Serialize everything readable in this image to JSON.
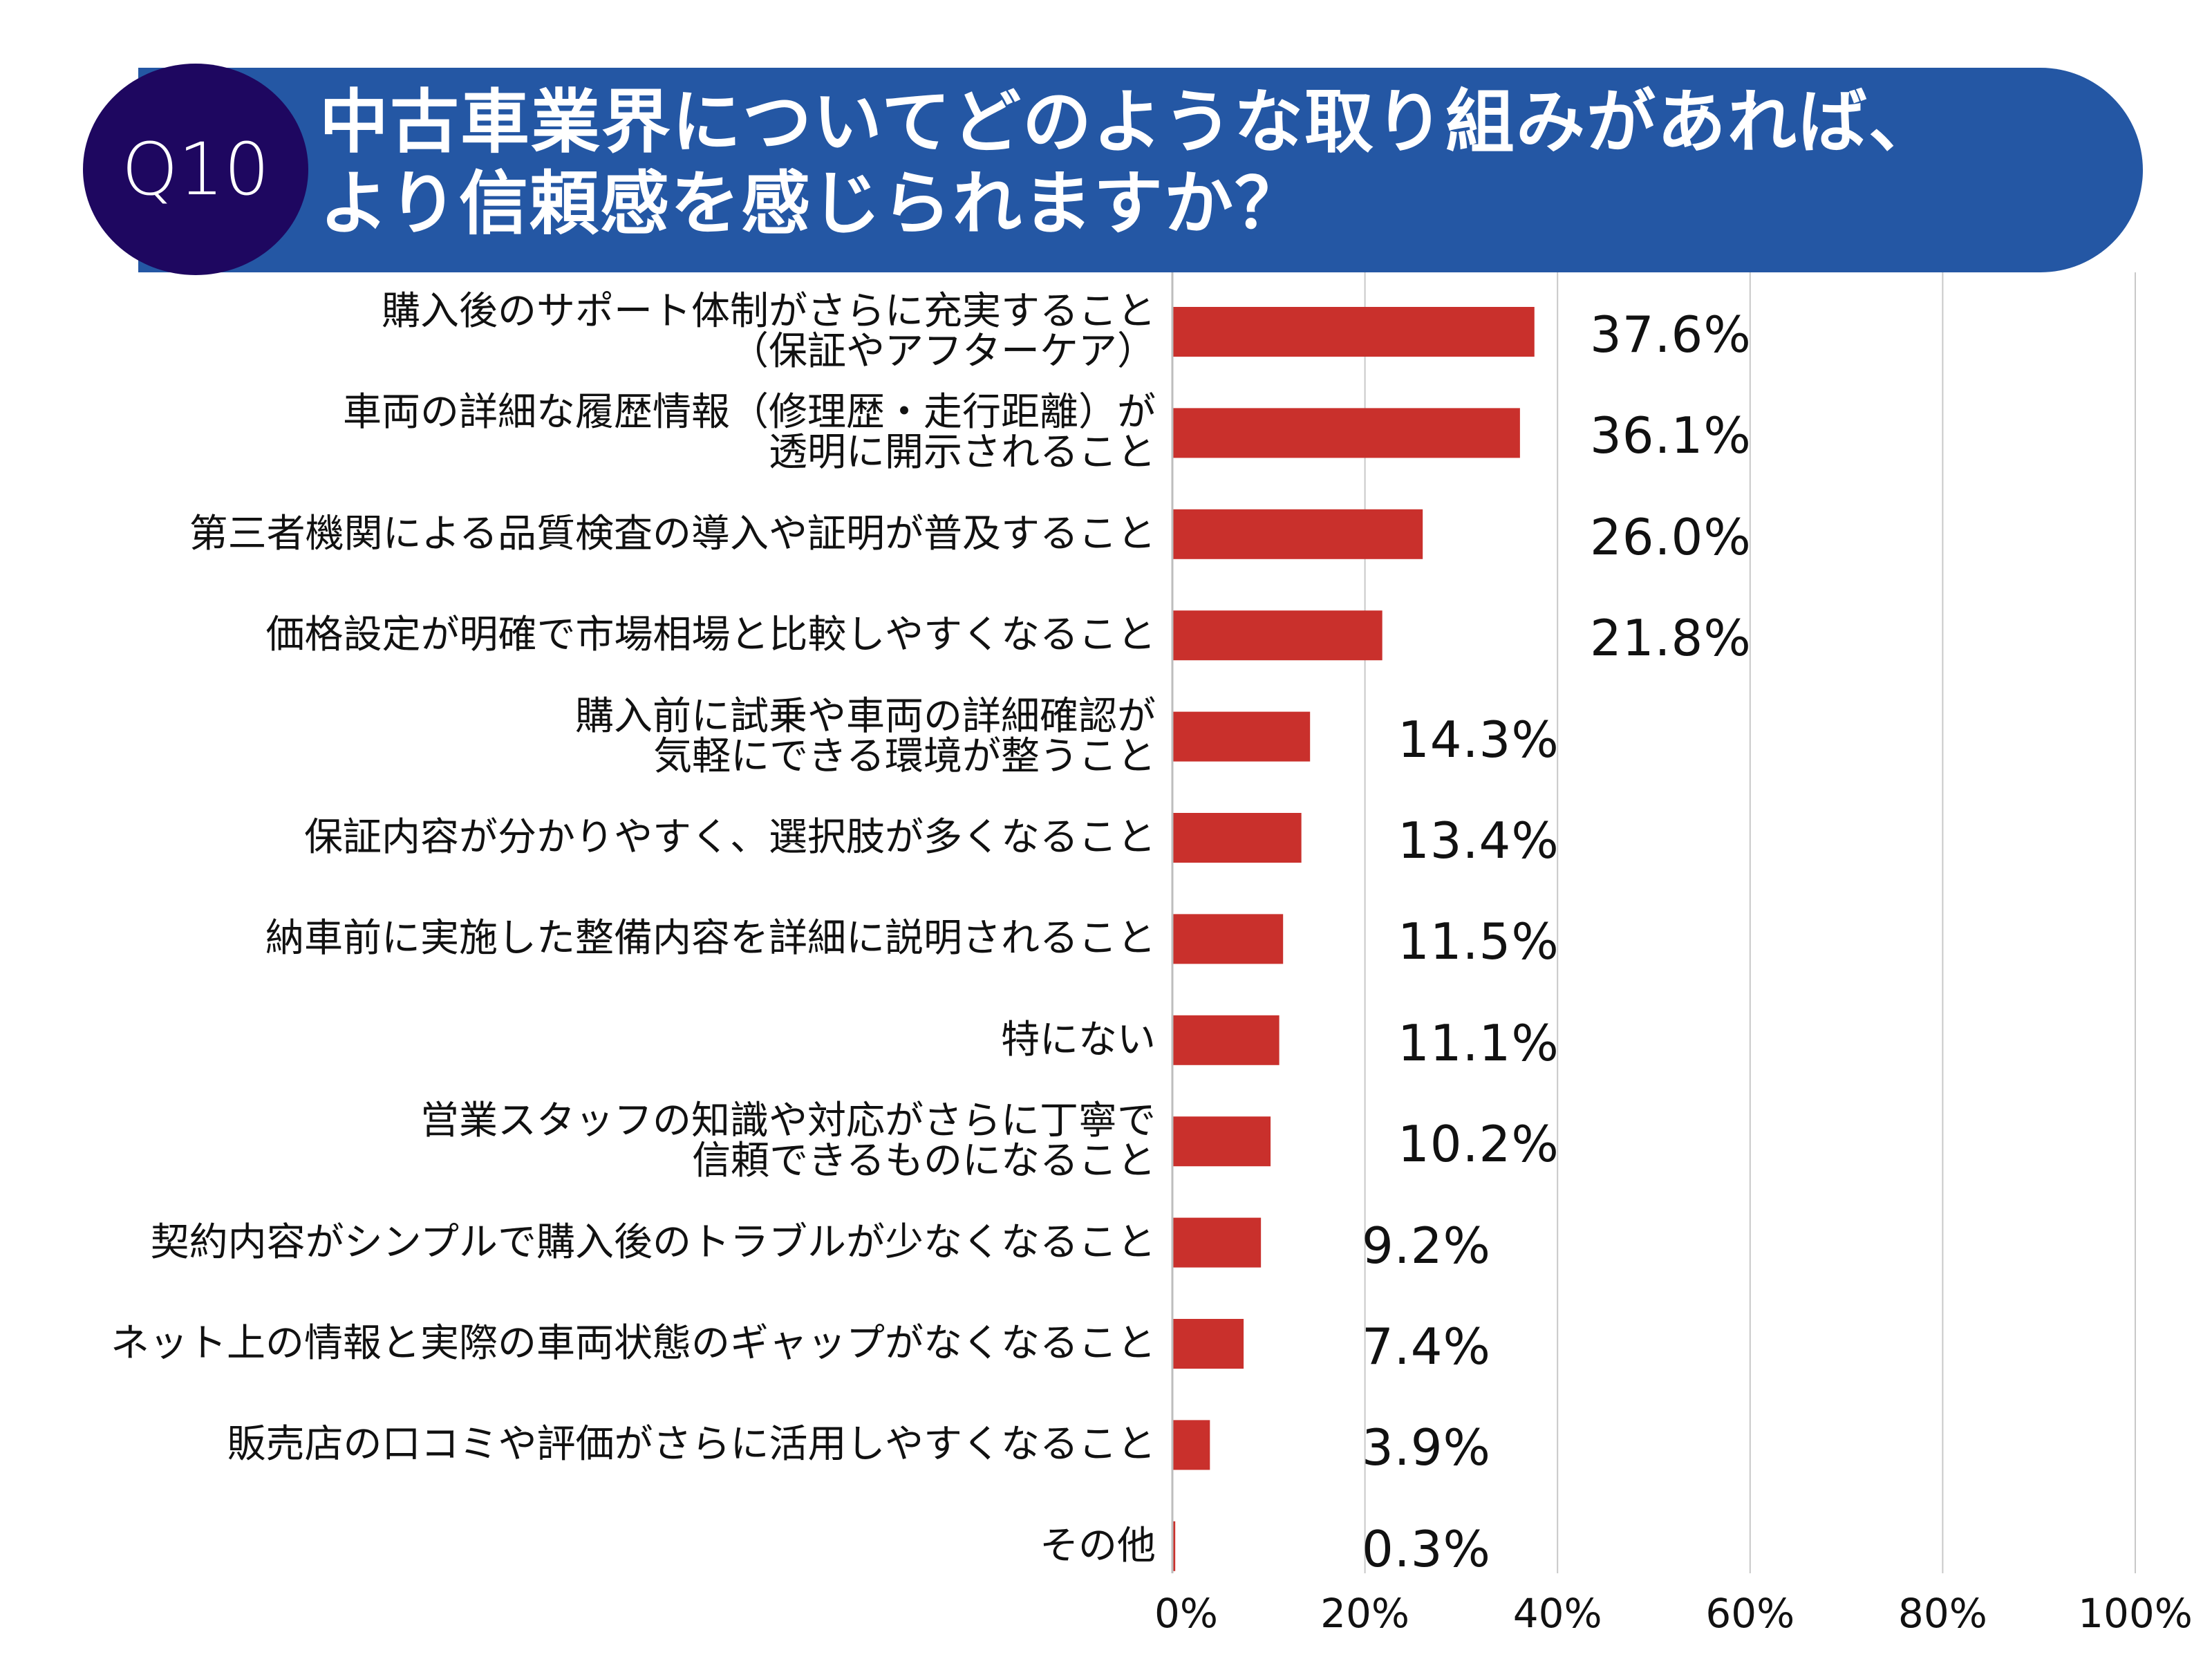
{
  "header": {
    "badge": "Q10",
    "title": "中古車業界についてどのような取り組みがあれば、\nより信頼感を感じられますか？"
  },
  "colors": {
    "bar": "#C9302C",
    "banner": "#2457A4",
    "badge": "#1E0760",
    "grid": "#C8C8C8"
  },
  "chart_data": {
    "type": "bar",
    "orientation": "horizontal",
    "categories": [
      "購入後のサポート体制がさらに充実すること\n（保証やアフターケア）",
      "車両の詳細な履歴情報（修理歴・走行距離）が\n透明に開示されること",
      "第三者機関による品質検査の導入や証明が普及すること",
      "価格設定が明確で市場相場と比較しやすくなること",
      "購入前に試乗や車両の詳細確認が\n気軽にできる環境が整うこと",
      "保証内容が分かりやすく、選択肢が多くなること",
      "納車前に実施した整備内容を詳細に説明されること",
      "特にない",
      "営業スタッフの知識や対応がさらに丁寧で\n信頼できるものになること",
      "契約内容がシンプルで購入後のトラブルが少なくなること",
      "ネット上の情報と実際の車両状態のギャップがなくなること",
      "販売店の口コミや評価がさらに活用しやすくなること",
      "その他"
    ],
    "values": [
      37.6,
      36.1,
      26.0,
      21.8,
      14.3,
      13.4,
      11.5,
      11.1,
      10.2,
      9.2,
      7.4,
      3.9,
      0.3
    ],
    "value_labels": [
      "37.6%",
      "36.1%",
      "26.0%",
      "21.8%",
      "14.3%",
      "13.4%",
      "11.5%",
      "11.1%",
      "10.2%",
      "9.2%",
      "7.4%",
      "3.9%",
      "0.3%"
    ],
    "xlim": [
      0,
      100
    ],
    "x_ticks": [
      "0%",
      "20%",
      "40%",
      "60%",
      "80%",
      "100%"
    ],
    "grid": true
  }
}
